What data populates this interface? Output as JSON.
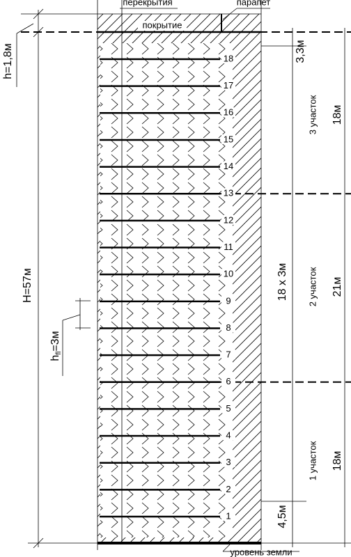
{
  "labels": {
    "floors_top": "перекрытия",
    "parapet": "парапет",
    "roof": "покрытие",
    "h_roof": "h=1,8м",
    "dim_top": "3,3м",
    "section3": "3 участок",
    "section3_h": "18м",
    "floors_dim": "18 x 3м",
    "section2": "2 участок",
    "section2_h": "21м",
    "section1": "1 участок",
    "section1_h": "18м",
    "dim_bottom": "4,5м",
    "total_h": "H=57м",
    "h_fl": {
      "main": "h",
      "sub": "fl",
      "rest": "=3м"
    },
    "ground": "уровень земли"
  },
  "floors": [
    "1",
    "2",
    "3",
    "4",
    "5",
    "6",
    "7",
    "8",
    "9",
    "10",
    "11",
    "12",
    "13",
    "14",
    "15",
    "16",
    "17",
    "18"
  ]
}
